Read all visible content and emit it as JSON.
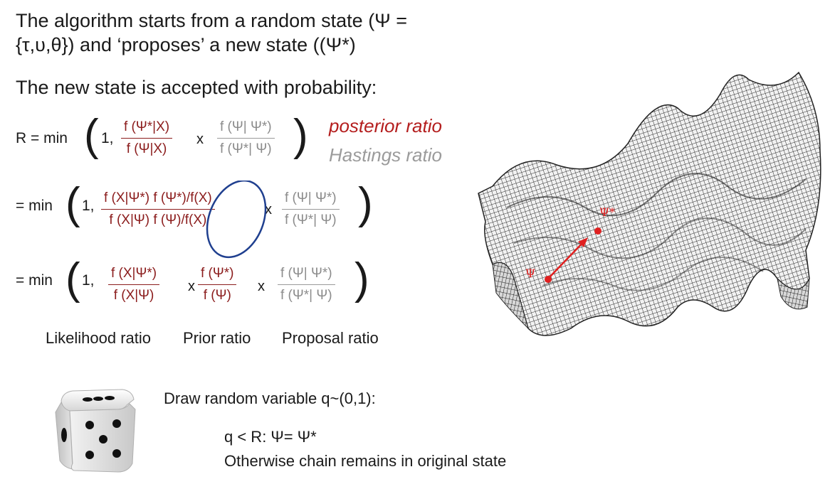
{
  "intro": {
    "line1": "The algorithm starts from a random state (Ψ =",
    "line2": "{τ,υ,θ}) and ‘proposes’ a new state ((Ψ*)"
  },
  "acceptance_line": "The new state is accepted with probability:",
  "eq1": {
    "prefix": "R = min",
    "one": "1,",
    "post_num": "f (Ψ*|X)",
    "post_den": "f (Ψ|X)",
    "times": "x",
    "hast_num": "f (Ψ| Ψ*)",
    "hast_den": "f (Ψ*| Ψ)"
  },
  "labels": {
    "posterior": "posterior ratio",
    "hastings": "Hastings ratio"
  },
  "eq2": {
    "prefix": "= min",
    "one": "1,",
    "num": "f (X|Ψ*) f (Ψ*)/f(X)",
    "den": "f (X|Ψ) f (Ψ)/f(X)",
    "times": "x",
    "hast_num": "f (Ψ| Ψ*)",
    "hast_den": "f (Ψ*| Ψ)"
  },
  "eq3": {
    "prefix": "= min",
    "one": "1,",
    "lik_num": "f (X|Ψ*)",
    "lik_den": "f (X|Ψ)",
    "times1": "x",
    "prior_num": "f (Ψ*)",
    "prior_den": "f (Ψ)",
    "times2": "x",
    "prop_num": "f (Ψ| Ψ*)",
    "prop_den": "f (Ψ*| Ψ)"
  },
  "ratio_labels": {
    "likelihood": "Likelihood ratio",
    "prior": "Prior ratio",
    "proposal": "Proposal ratio"
  },
  "draw": {
    "line": "Draw random variable  q~(0,1):",
    "accept": "q < R: Ψ= Ψ*",
    "otherwise": "Otherwise chain remains in original state"
  },
  "surface": {
    "psi": "Ψ",
    "psi_star": "Ψ*"
  },
  "colors": {
    "dark_red": "#8b1c1c",
    "bright_red": "#b41e1e",
    "gray": "#9b9b9b",
    "circle_blue": "#1f3f8f",
    "arrow_red": "#e02020"
  },
  "icons": {
    "dice": "dice-icon",
    "surface": "likelihood-surface-image"
  }
}
